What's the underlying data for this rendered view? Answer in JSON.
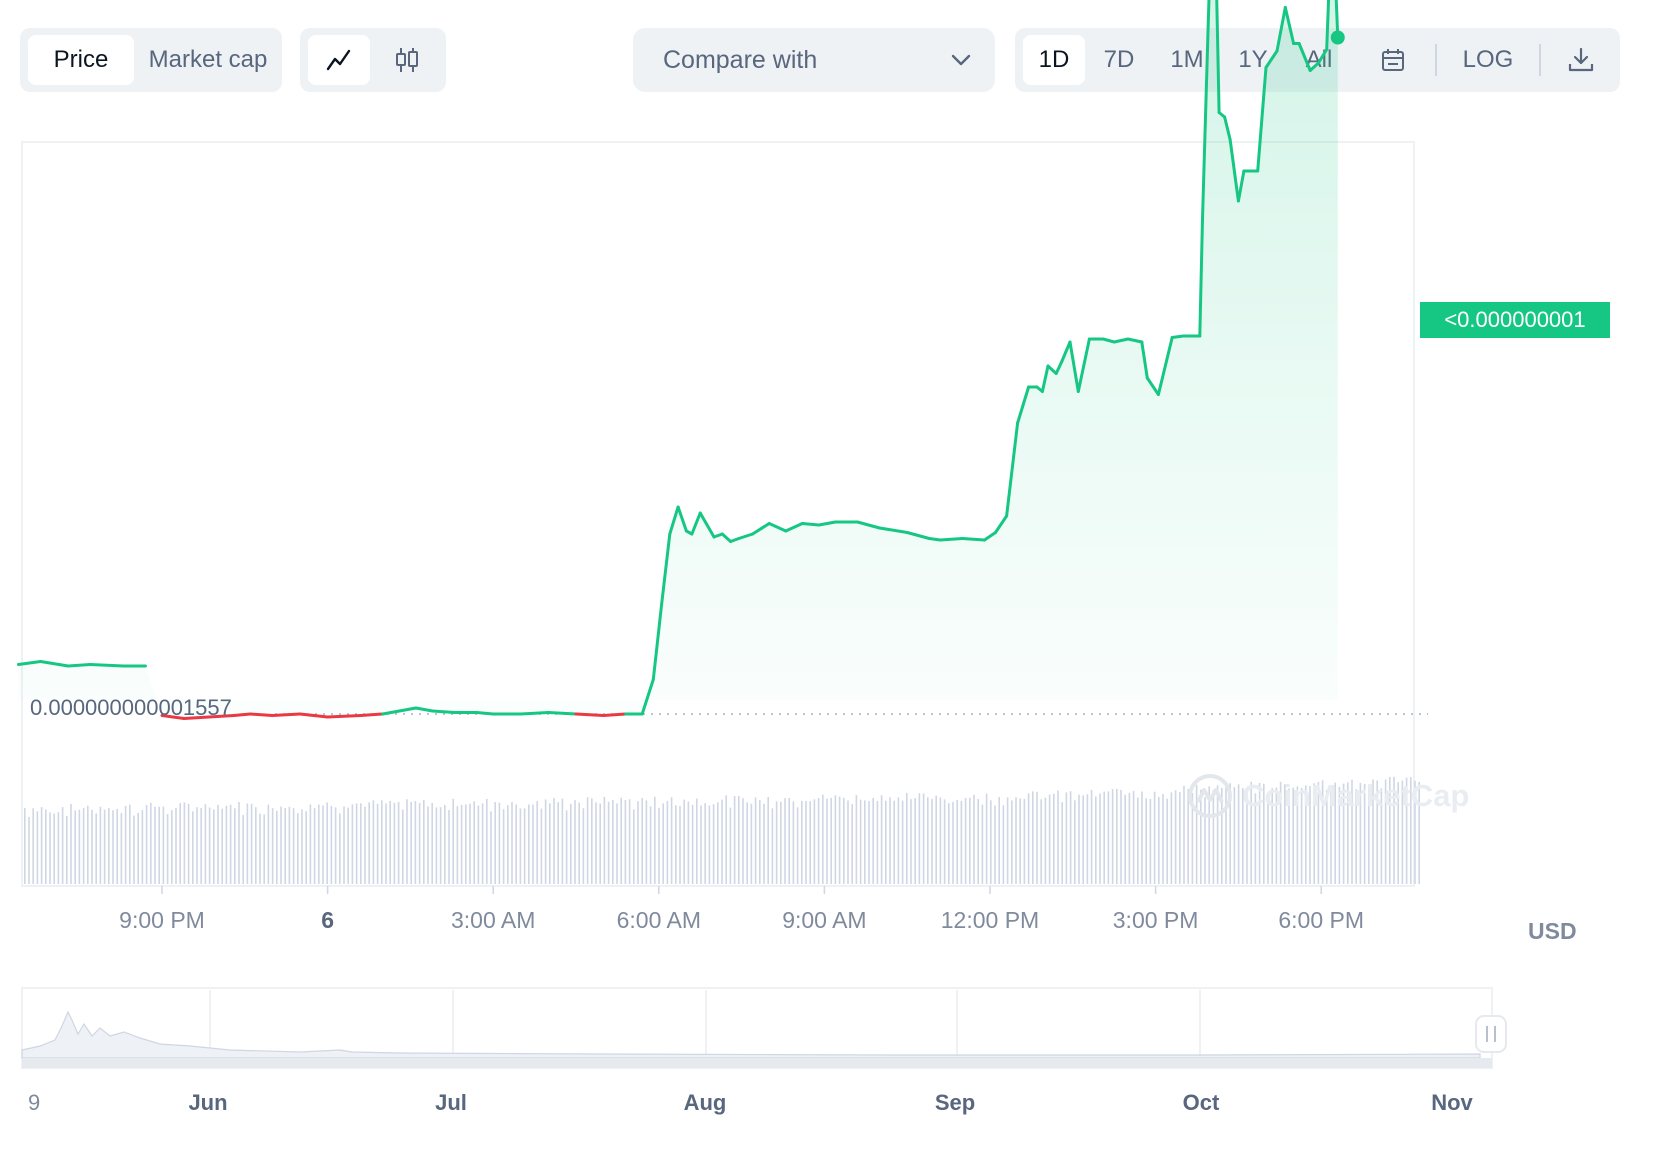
{
  "toolbar": {
    "price_label": "Price",
    "market_cap_label": "Market cap",
    "compare_label": "Compare with",
    "ranges": [
      "1D",
      "7D",
      "1M",
      "1Y",
      "All"
    ],
    "active_range": "1D",
    "log_label": "LOG",
    "icons": [
      "line-chart-icon",
      "candlestick-icon",
      "chevron-down-icon",
      "calendar-icon",
      "download-icon"
    ]
  },
  "price_tag": "<0.000000001",
  "reference_label": "0.000000000001557",
  "currency": "USD",
  "watermark": "CoinMarketCap",
  "colors": {
    "up": "#16c784",
    "down": "#ea3943",
    "volume": "#cfd6e4",
    "accent_bg": "#eff2f5"
  },
  "chart_data": {
    "type": "line",
    "xlabel": "",
    "ylabel": "",
    "x_ticks": [
      "9:00 PM",
      "6",
      "3:00 AM",
      "6:00 AM",
      "9:00 AM",
      "12:00 PM",
      "3:00 PM",
      "6:00 PM"
    ],
    "x_hours": [
      21,
      24,
      27,
      30,
      33,
      36,
      39,
      42
    ],
    "reference_value_label": "0.000000000001557",
    "last_price_label": "<0.000000001",
    "series": [
      {
        "color_above_reference": "#16c784",
        "color_below_reference": "#ea3943",
        "x_hours": [
          18.4,
          18.8,
          19.3,
          19.7,
          20.3,
          20.7,
          21.0,
          21.2,
          21.4,
          22.3,
          22.6,
          23.0,
          23.5,
          24.0,
          24.6,
          25.0,
          25.3,
          25.6,
          25.9,
          26.3,
          26.7,
          27.0,
          27.5,
          28.0,
          28.5,
          29.0,
          29.4,
          29.7,
          29.9,
          30.05,
          30.2,
          30.35,
          30.5,
          30.6,
          30.75,
          31.0,
          31.15,
          31.3,
          31.45,
          31.7,
          32.0,
          32.3,
          32.6,
          32.9,
          33.2,
          33.6,
          34.0,
          34.5,
          34.9,
          35.1,
          35.5,
          35.9,
          36.1,
          36.3,
          36.5,
          36.7,
          36.85,
          36.95,
          37.05,
          37.2,
          37.3,
          37.45,
          37.6,
          37.8,
          38.05,
          38.25,
          38.5,
          38.75,
          38.85,
          39.05,
          39.3,
          39.5,
          39.8,
          39.85,
          39.95,
          40.05,
          40.15,
          40.25,
          40.35,
          40.5,
          40.6,
          40.85,
          41.0,
          41.2,
          41.35,
          41.5,
          41.6,
          41.8,
          41.95,
          42.1,
          42.2,
          42.3
        ],
        "values": [
          1.33,
          1.35,
          1.32,
          1.33,
          1.32,
          1.32,
          0.99,
          0.98,
          0.97,
          0.99,
          1.0,
          0.99,
          1.0,
          0.98,
          0.99,
          1.0,
          1.02,
          1.04,
          1.02,
          1.01,
          1.01,
          1.0,
          1.0,
          1.01,
          1.0,
          0.99,
          1.0,
          1.0,
          1.23,
          1.73,
          2.2,
          2.38,
          2.22,
          2.2,
          2.34,
          2.18,
          2.2,
          2.15,
          2.17,
          2.2,
          2.27,
          2.22,
          2.27,
          2.26,
          2.28,
          2.28,
          2.24,
          2.21,
          2.17,
          2.16,
          2.17,
          2.16,
          2.21,
          2.32,
          2.94,
          3.18,
          3.18,
          3.15,
          3.32,
          3.27,
          3.35,
          3.48,
          3.15,
          3.5,
          3.5,
          3.48,
          3.5,
          3.48,
          3.24,
          3.13,
          3.51,
          3.52,
          3.52,
          4.3,
          5.55,
          6.78,
          5.01,
          4.98,
          4.83,
          4.42,
          4.62,
          4.62,
          5.31,
          5.42,
          5.71,
          5.47,
          5.47,
          5.29,
          5.34,
          5.43,
          6.41,
          5.51
        ]
      }
    ],
    "volume": "per-interval bars, unscaled",
    "navigator": {
      "x_ticks": [
        "9",
        "Jun",
        "Jul",
        "Aug",
        "Sep",
        "Oct",
        "Nov"
      ]
    }
  }
}
